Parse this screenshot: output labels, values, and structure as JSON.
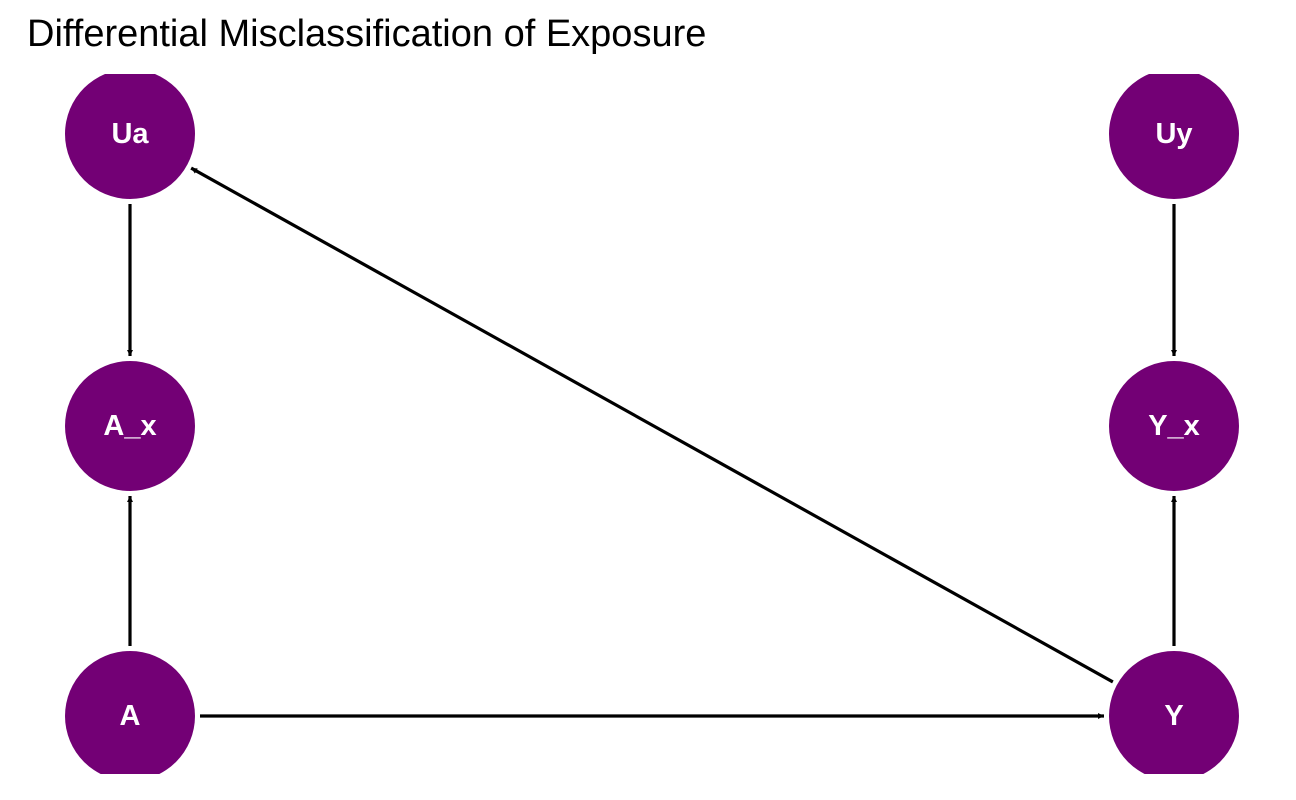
{
  "title": "Differential Misclassification of Exposure",
  "colors": {
    "node_fill": "#730075",
    "node_text": "#ffffff",
    "edge": "#000000",
    "background": "#ffffff"
  },
  "nodes": [
    {
      "id": "Ua",
      "label": "Ua"
    },
    {
      "id": "Uy",
      "label": "Uy"
    },
    {
      "id": "A_x",
      "label": "A_x"
    },
    {
      "id": "Y_x",
      "label": "Y_x"
    },
    {
      "id": "A",
      "label": "A"
    },
    {
      "id": "Y",
      "label": "Y"
    }
  ],
  "edges": [
    {
      "from": "Ua",
      "to": "A_x"
    },
    {
      "from": "A",
      "to": "A_x"
    },
    {
      "from": "A",
      "to": "Y"
    },
    {
      "from": "Y",
      "to": "Ua"
    },
    {
      "from": "Uy",
      "to": "Y_x"
    },
    {
      "from": "Y",
      "to": "Y_x"
    }
  ]
}
